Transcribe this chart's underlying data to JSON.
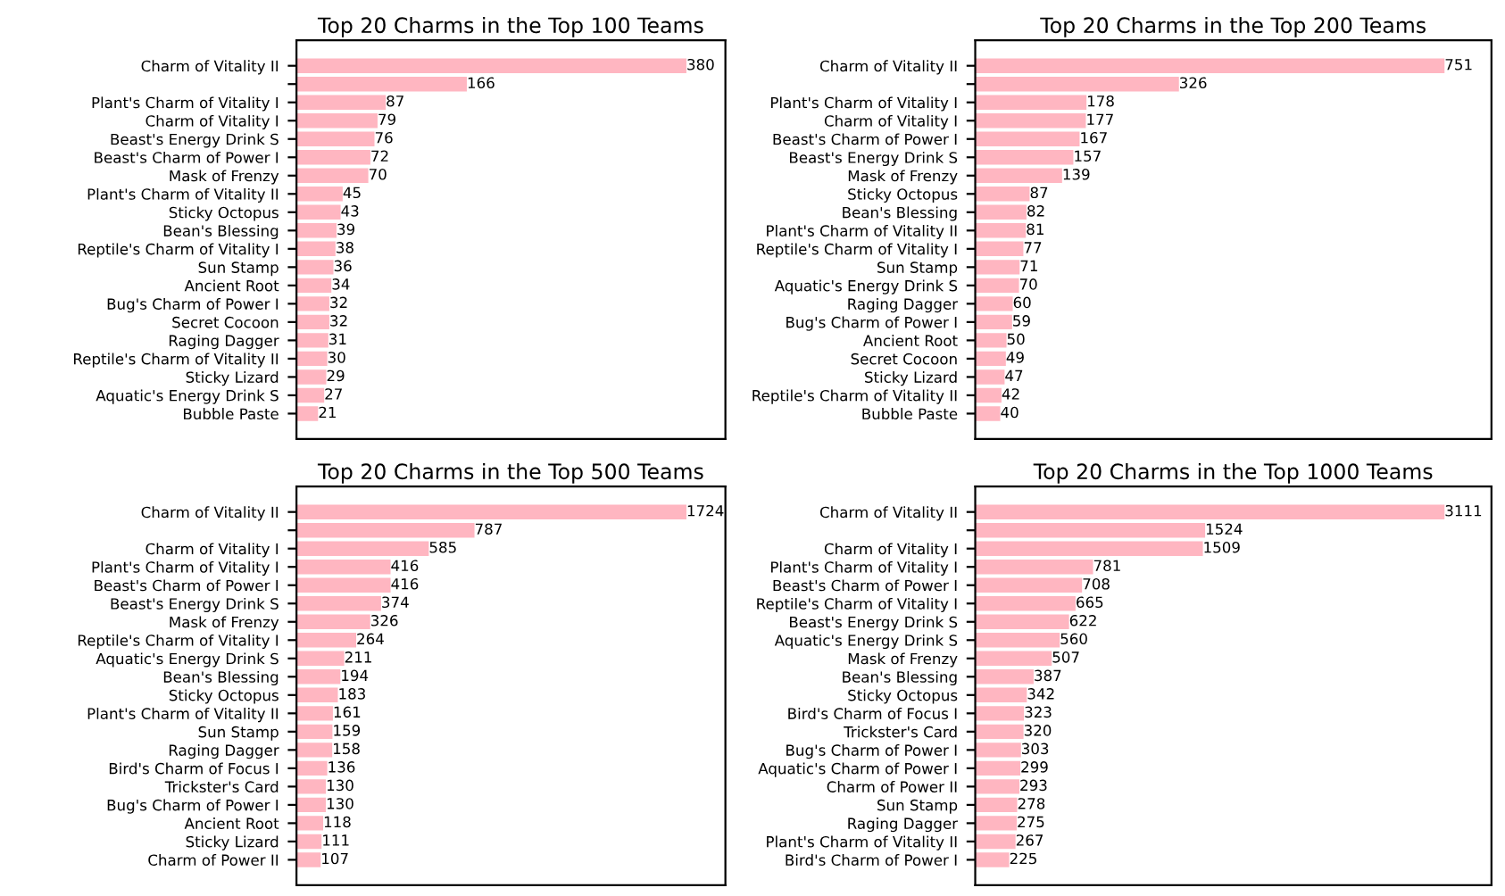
{
  "chart_data": [
    {
      "type": "bar",
      "orientation": "horizontal",
      "title": "Top 20 Charms in the Top 100 Teams",
      "color": "#ffb6c1",
      "data_labels": true,
      "tick_labels": "y",
      "grid": false,
      "legend": false,
      "categories": [
        "Charm of Vitality II",
        null,
        "Plant's Charm of Vitality I",
        "Charm of Vitality I",
        "Beast's Energy Drink S",
        "Beast's Charm of Power I",
        "Mask of Frenzy",
        "Plant's Charm of Vitality II",
        "Sticky Octopus",
        "Bean's Blessing",
        "Reptile's Charm of Vitality I",
        "Sun Stamp",
        "Ancient Root",
        "Bug's Charm of Power I",
        "Secret Cocoon",
        "Raging Dagger",
        "Reptile's Charm of Vitality II",
        "Sticky Lizard",
        "Aquatic's Energy Drink S",
        "Bubble Paste"
      ],
      "values": [
        380,
        166,
        87,
        79,
        76,
        72,
        70,
        45,
        43,
        39,
        38,
        36,
        34,
        32,
        32,
        31,
        30,
        29,
        27,
        21
      ]
    },
    {
      "type": "bar",
      "orientation": "horizontal",
      "title": "Top 20 Charms in the Top 200 Teams",
      "color": "#ffb6c1",
      "data_labels": true,
      "tick_labels": "y",
      "grid": false,
      "legend": false,
      "categories": [
        "Charm of Vitality II",
        null,
        "Plant's Charm of Vitality I",
        "Charm of Vitality I",
        "Beast's Charm of Power I",
        "Beast's Energy Drink S",
        "Mask of Frenzy",
        "Sticky Octopus",
        "Bean's Blessing",
        "Plant's Charm of Vitality II",
        "Reptile's Charm of Vitality I",
        "Sun Stamp",
        "Aquatic's Energy Drink S",
        "Raging Dagger",
        "Bug's Charm of Power I",
        "Ancient Root",
        "Secret Cocoon",
        "Sticky Lizard",
        "Reptile's Charm of Vitality II",
        "Bubble Paste"
      ],
      "values": [
        751,
        326,
        178,
        177,
        167,
        157,
        139,
        87,
        82,
        81,
        77,
        71,
        70,
        60,
        59,
        50,
        49,
        47,
        42,
        40
      ]
    },
    {
      "type": "bar",
      "orientation": "horizontal",
      "title": "Top 20 Charms in the Top 500 Teams",
      "color": "#ffb6c1",
      "data_labels": true,
      "tick_labels": "y",
      "grid": false,
      "legend": false,
      "categories": [
        "Charm of Vitality II",
        null,
        "Charm of Vitality I",
        "Plant's Charm of Vitality I",
        "Beast's Charm of Power I",
        "Beast's Energy Drink S",
        "Mask of Frenzy",
        "Reptile's Charm of Vitality I",
        "Aquatic's Energy Drink S",
        "Bean's Blessing",
        "Sticky Octopus",
        "Plant's Charm of Vitality II",
        "Sun Stamp",
        "Raging Dagger",
        "Bird's Charm of Focus I",
        "Trickster's Card",
        "Bug's Charm of Power I",
        "Ancient Root",
        "Sticky Lizard",
        "Charm of Power II"
      ],
      "values": [
        1724,
        787,
        585,
        416,
        416,
        374,
        326,
        264,
        211,
        194,
        183,
        161,
        159,
        158,
        136,
        130,
        130,
        118,
        111,
        107
      ]
    },
    {
      "type": "bar",
      "orientation": "horizontal",
      "title": "Top 20 Charms in the Top 1000 Teams",
      "color": "#ffb6c1",
      "data_labels": true,
      "tick_labels": "y",
      "grid": false,
      "legend": false,
      "categories": [
        "Charm of Vitality II",
        null,
        "Charm of Vitality I",
        "Plant's Charm of Vitality I",
        "Beast's Charm of Power I",
        "Reptile's Charm of Vitality I",
        "Beast's Energy Drink S",
        "Aquatic's Energy Drink S",
        "Mask of Frenzy",
        "Bean's Blessing",
        "Sticky Octopus",
        "Bird's Charm of Focus I",
        "Trickster's Card",
        "Bug's Charm of Power I",
        "Aquatic's Charm of Power I",
        "Charm of Power II",
        "Sun Stamp",
        "Raging Dagger",
        "Plant's Charm of Vitality II",
        "Bird's Charm of Power I"
      ],
      "values": [
        3111,
        1524,
        1509,
        781,
        708,
        665,
        622,
        560,
        507,
        387,
        342,
        323,
        320,
        303,
        299,
        293,
        278,
        275,
        267,
        225
      ]
    }
  ]
}
